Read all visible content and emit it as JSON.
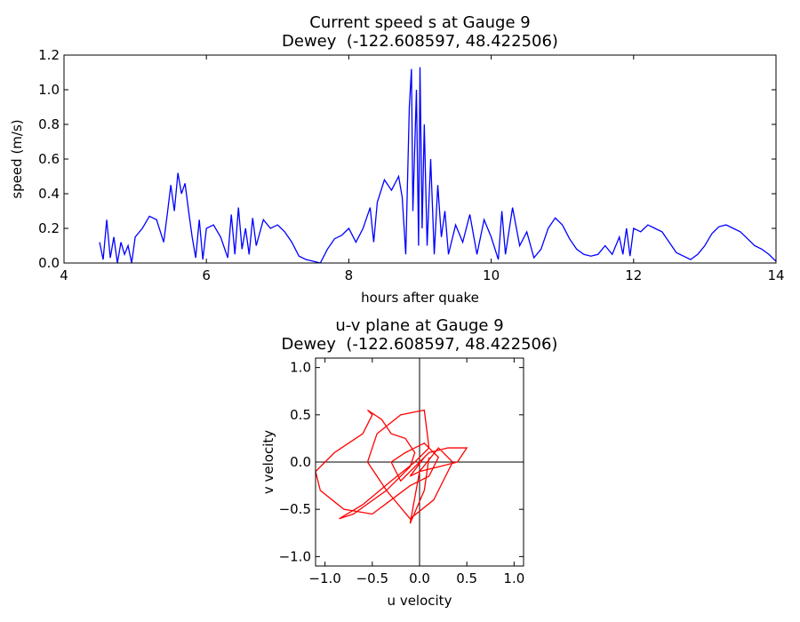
{
  "chart_data": [
    {
      "type": "line",
      "title": [
        "Current speed s at Gauge 9",
        "Dewey  (-122.608597, 48.422506)"
      ],
      "xlabel": "hours after quake",
      "ylabel": "speed (m/s)",
      "xlim": [
        4,
        14
      ],
      "xticks": [
        4,
        6,
        8,
        10,
        12,
        14
      ],
      "ylim": [
        0,
        1.2
      ],
      "yticks": [
        {
          "value": 0,
          "label": "0.0"
        },
        0.2,
        0.4,
        0.6,
        0.8,
        {
          "value": 1,
          "label": "1.0"
        },
        1.2
      ],
      "x": [
        4.5,
        4.55,
        4.6,
        4.65,
        4.7,
        4.75,
        4.8,
        4.85,
        4.9,
        4.95,
        5.0,
        5.1,
        5.2,
        5.3,
        5.4,
        5.45,
        5.5,
        5.55,
        5.6,
        5.65,
        5.7,
        5.75,
        5.8,
        5.85,
        5.9,
        5.95,
        6.0,
        6.1,
        6.2,
        6.3,
        6.35,
        6.4,
        6.45,
        6.5,
        6.55,
        6.6,
        6.65,
        6.7,
        6.8,
        6.9,
        7.0,
        7.1,
        7.2,
        7.3,
        7.4,
        7.5,
        7.6,
        7.7,
        7.8,
        7.9,
        8.0,
        8.1,
        8.2,
        8.3,
        8.35,
        8.4,
        8.5,
        8.6,
        8.7,
        8.75,
        8.8,
        8.85,
        8.88,
        8.9,
        8.95,
        8.98,
        9.0,
        9.03,
        9.06,
        9.1,
        9.15,
        9.2,
        9.25,
        9.3,
        9.35,
        9.4,
        9.5,
        9.6,
        9.7,
        9.8,
        9.9,
        10.0,
        10.1,
        10.15,
        10.2,
        10.3,
        10.4,
        10.5,
        10.6,
        10.7,
        10.8,
        10.9,
        11.0,
        11.1,
        11.2,
        11.3,
        11.4,
        11.5,
        11.6,
        11.7,
        11.8,
        11.85,
        11.9,
        11.95,
        12.0,
        12.1,
        12.2,
        12.3,
        12.4,
        12.5,
        12.6,
        12.7,
        12.8,
        12.9,
        13.0,
        13.1,
        13.2,
        13.3,
        13.4,
        13.5,
        13.6,
        13.7,
        13.8,
        13.9,
        14.0
      ],
      "series": [
        {
          "color": "#0000ff",
          "values": [
            0.12,
            0.02,
            0.25,
            0.03,
            0.15,
            0.0,
            0.12,
            0.05,
            0.1,
            0.0,
            0.15,
            0.2,
            0.27,
            0.25,
            0.12,
            0.28,
            0.45,
            0.3,
            0.52,
            0.4,
            0.46,
            0.3,
            0.15,
            0.03,
            0.25,
            0.02,
            0.2,
            0.22,
            0.15,
            0.03,
            0.28,
            0.05,
            0.32,
            0.08,
            0.2,
            0.05,
            0.26,
            0.1,
            0.25,
            0.2,
            0.22,
            0.18,
            0.12,
            0.04,
            0.02,
            0.01,
            0.0,
            0.08,
            0.14,
            0.16,
            0.2,
            0.12,
            0.2,
            0.32,
            0.12,
            0.35,
            0.48,
            0.42,
            0.5,
            0.38,
            0.05,
            0.9,
            1.12,
            0.3,
            1.0,
            0.1,
            1.13,
            0.2,
            0.8,
            0.1,
            0.6,
            0.05,
            0.45,
            0.15,
            0.3,
            0.05,
            0.22,
            0.12,
            0.28,
            0.05,
            0.25,
            0.15,
            0.02,
            0.3,
            0.05,
            0.32,
            0.1,
            0.18,
            0.03,
            0.08,
            0.2,
            0.26,
            0.22,
            0.14,
            0.08,
            0.05,
            0.04,
            0.05,
            0.1,
            0.05,
            0.15,
            0.05,
            0.2,
            0.04,
            0.2,
            0.18,
            0.22,
            0.2,
            0.18,
            0.12,
            0.06,
            0.04,
            0.02,
            0.05,
            0.1,
            0.17,
            0.21,
            0.22,
            0.2,
            0.18,
            0.14,
            0.1,
            0.08,
            0.05,
            0.01
          ]
        }
      ]
    },
    {
      "type": "line",
      "title": [
        "u-v plane at Gauge 9",
        "Dewey  (-122.608597, 48.422506)"
      ],
      "xlabel": "u velocity",
      "ylabel": "v velocity",
      "xlim": [
        -1.1,
        1.1
      ],
      "xticks": [
        {
          "value": -1,
          "label": "−1.0"
        },
        {
          "value": -0.5,
          "label": "−0.5"
        },
        {
          "value": 0,
          "label": "0.0"
        },
        0.5,
        {
          "value": 1,
          "label": "1.0"
        }
      ],
      "ylim": [
        -1.1,
        1.1
      ],
      "yticks": [
        {
          "value": -1,
          "label": "−1.0"
        },
        {
          "value": -0.5,
          "label": "−0.5"
        },
        {
          "value": 0,
          "label": "0.0"
        },
        0.5,
        {
          "value": 1,
          "label": "1.0"
        }
      ],
      "x": [
        0,
        0.1,
        0.3,
        0.5,
        0.4,
        0.2,
        0,
        -0.1,
        0.05,
        -0.2,
        -0.3,
        -0.15,
        0.05,
        0.2,
        0.1,
        -0.1,
        -0.3,
        -0.5,
        -0.8,
        -1.05,
        -1.1,
        -0.9,
        -0.6,
        -0.5,
        -0.55,
        -0.4,
        -0.3,
        -0.15,
        -0.05,
        -0.1,
        -0.35,
        -0.7,
        -0.85,
        -0.6,
        -0.3,
        -0.05,
        0.1,
        0.05,
        -0.2,
        -0.45,
        -0.55,
        -0.35,
        -0.1,
        0.15,
        0.35,
        0.2,
        0,
        -0.1,
        0.05,
        0.1
      ],
      "series": [
        {
          "color": "#ff0000",
          "values": [
            0,
            0.1,
            0.15,
            0.15,
            0.0,
            -0.05,
            -0.1,
            -0.15,
            0.05,
            -0.2,
            0.0,
            0.1,
            0.2,
            0.05,
            -0.15,
            -0.25,
            -0.4,
            -0.55,
            -0.5,
            -0.3,
            -0.1,
            0.1,
            0.3,
            0.5,
            0.55,
            0.45,
            0.3,
            0.25,
            0.1,
            -0.05,
            -0.3,
            -0.55,
            -0.6,
            -0.45,
            -0.2,
            0.0,
            0.15,
            0.55,
            0.5,
            0.3,
            0.0,
            -0.3,
            -0.6,
            -0.4,
            0.0,
            0.15,
            -0.1,
            -0.65,
            -0.3,
            0.05
          ]
        }
      ]
    }
  ]
}
